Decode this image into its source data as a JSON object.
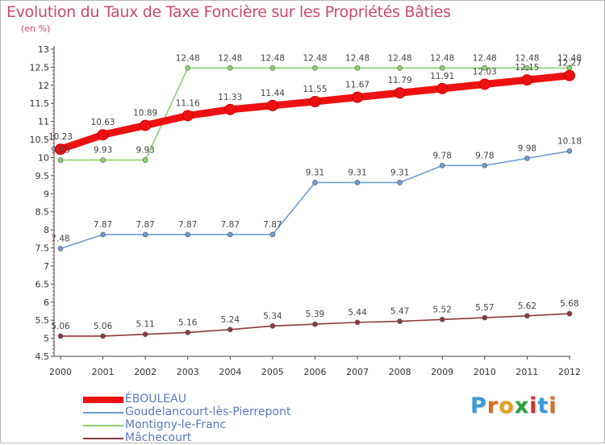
{
  "header": {
    "title": "Evolution du Taux de Taxe Foncière sur les Propriétés Bâties",
    "unit": "(en %)"
  },
  "chart_data": {
    "type": "line",
    "title": "Evolution du Taux de Taxe Foncière sur les Propriétés Bâties",
    "ylabel": "(en %)",
    "xlabel": "",
    "x": [
      "2000",
      "2001",
      "2002",
      "2003",
      "2004",
      "2005",
      "2006",
      "2007",
      "2008",
      "2009",
      "2010",
      "2011",
      "2012"
    ],
    "ylim": [
      4.5,
      13
    ],
    "yticks": [
      "4.5",
      "5",
      "5.5",
      "6",
      "6.5",
      "7",
      "7.5",
      "8",
      "8.5",
      "9",
      "9.5",
      "10",
      "10.5",
      "11",
      "11.5",
      "12",
      "12.5",
      "13"
    ],
    "grid": false,
    "legend_position": "bottom-left",
    "series": [
      {
        "name": "ÉBOULEAU",
        "color": "#ee1111",
        "values": [
          10.23,
          10.63,
          10.89,
          11.16,
          11.33,
          11.44,
          11.55,
          11.67,
          11.79,
          11.91,
          12.03,
          12.15,
          12.27
        ],
        "labels": [
          "10.23",
          "10.63",
          "10.89",
          "11.16",
          "11.33",
          "11.44",
          "11.55",
          "11.67",
          "11.79",
          "11.91",
          "12.03",
          "12.15",
          "12.27"
        ]
      },
      {
        "name": "Goudelancourt-lès-Pierrepont",
        "color": "#6f9bd6",
        "values": [
          7.48,
          7.87,
          7.87,
          7.87,
          7.87,
          7.87,
          9.31,
          9.31,
          9.31,
          9.78,
          9.78,
          9.98,
          10.18
        ],
        "labels": [
          "7.48",
          "7.87",
          "7.87",
          "7.87",
          "7.87",
          "7.87",
          "9.31",
          "9.31",
          "9.31",
          "9.78",
          "9.78",
          "9.98",
          "10.18"
        ]
      },
      {
        "name": "Montigny-le-Franc",
        "color": "#88d46b",
        "values": [
          9.93,
          9.93,
          9.93,
          12.48,
          12.48,
          12.48,
          12.48,
          12.48,
          12.48,
          12.48,
          12.48,
          12.48,
          12.48
        ],
        "labels": [
          "9.93",
          "9.93",
          "9.93",
          "12.48",
          "12.48",
          "12.48",
          "12.48",
          "12.48",
          "12.48",
          "12.48",
          "12.48",
          "12.48",
          "12.48"
        ]
      },
      {
        "name": "Mâchecourt",
        "color": "#8a3a3a",
        "values": [
          5.06,
          5.06,
          5.11,
          5.16,
          5.24,
          5.34,
          5.39,
          5.44,
          5.47,
          5.52,
          5.57,
          5.62,
          5.68
        ],
        "labels": [
          "5.06",
          "5.06",
          "5.11",
          "5.16",
          "5.24",
          "5.34",
          "5.39",
          "5.44",
          "5.47",
          "5.52",
          "5.57",
          "5.62",
          "5.68"
        ]
      }
    ]
  },
  "legend": {
    "items": [
      "ÉBOULEAU",
      "Goudelancourt-lès-Pierrepont",
      "Montigny-le-Franc",
      "Mâchecourt"
    ]
  },
  "logo": {
    "letters": [
      "P",
      "r",
      "o",
      "x",
      "i",
      "t",
      "i"
    ],
    "colors": [
      "#3a9bd8",
      "#e06a1a",
      "#e0a21a",
      "#2f9e3c",
      "#d0322c",
      "#3a9bd8",
      "#e06a1a"
    ]
  }
}
